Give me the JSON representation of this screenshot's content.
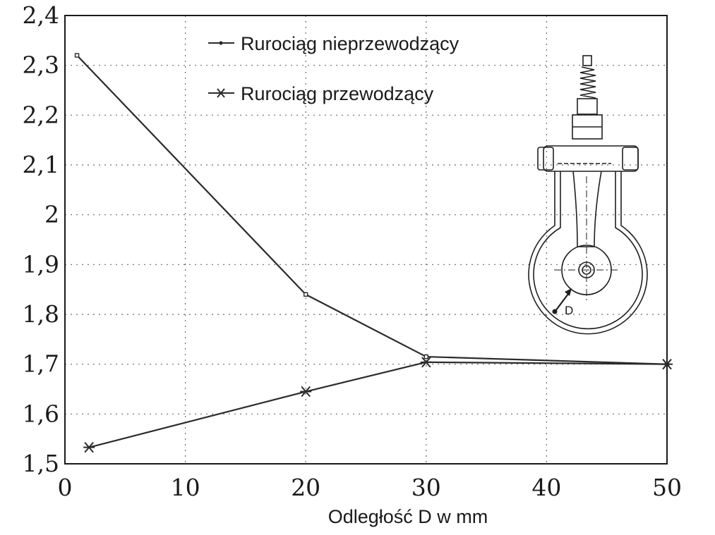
{
  "chart_data": {
    "type": "line",
    "xlabel": "Odległość D w mm",
    "ylabel": "",
    "xlim": [
      0,
      50
    ],
    "ylim": [
      1.5,
      2.4
    ],
    "xticks": [
      "0",
      "10",
      "20",
      "30",
      "40",
      "50"
    ],
    "yticks": [
      "1,5",
      "1,6",
      "1,7",
      "1,8",
      "1,9",
      "2",
      "2,1",
      "2,2",
      "2,3",
      "2,4"
    ],
    "grid": true,
    "legend_position": "top",
    "series": [
      {
        "name": "Rurociąg nieprzewodzący",
        "marker": "dot",
        "x": [
          1,
          20,
          30,
          50
        ],
        "y": [
          2.32,
          1.84,
          1.715,
          1.7
        ]
      },
      {
        "name": "Rurociąg przewodzący",
        "marker": "asterisk",
        "x": [
          2,
          20,
          30,
          50
        ],
        "y": [
          1.533,
          1.645,
          1.704,
          1.7
        ]
      }
    ],
    "inset": {
      "label": "D"
    },
    "colors": {
      "line": "#2b2b2b",
      "grid": "#6a6a6a",
      "background": "#ffffff"
    }
  }
}
